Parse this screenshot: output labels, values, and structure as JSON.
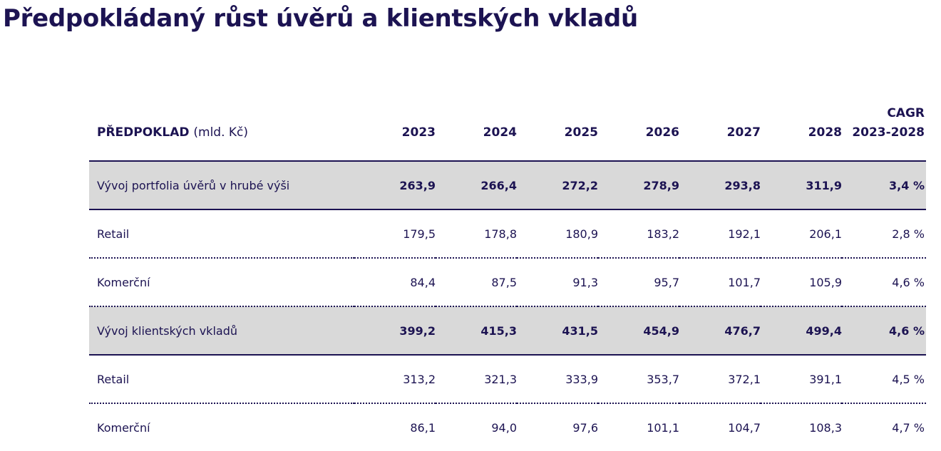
{
  "title": "Předpokládaný růst úvěrů a klientských vkladů",
  "table": {
    "header": {
      "label_main": "PŘEDPOKLAD",
      "label_unit": "(mld. Kč)",
      "years": [
        "2023",
        "2024",
        "2025",
        "2026",
        "2027",
        "2028"
      ],
      "cagr_line1": "CAGR",
      "cagr_line2": "2023-2028"
    },
    "rows": [
      {
        "label": "Vývoj portfolia úvěrů v hrubé výši",
        "values": [
          "263,9",
          "266,4",
          "272,2",
          "278,9",
          "293,8",
          "311,9"
        ],
        "cagr": "3,4 %",
        "summary": true
      },
      {
        "label": "Retail",
        "values": [
          "179,5",
          "178,8",
          "180,9",
          "183,2",
          "192,1",
          "206,1"
        ],
        "cagr": "2,8 %",
        "summary": false
      },
      {
        "label": "Komerční",
        "values": [
          "84,4",
          "87,5",
          "91,3",
          "95,7",
          "101,7",
          "105,9"
        ],
        "cagr": "4,6 %",
        "summary": false
      },
      {
        "label": "Vývoj klientských vkladů",
        "values": [
          "399,2",
          "415,3",
          "431,5",
          "454,9",
          "476,7",
          "499,4"
        ],
        "cagr": "4,6 %",
        "summary": true
      },
      {
        "label": "Retail",
        "values": [
          "313,2",
          "321,3",
          "333,9",
          "353,7",
          "372,1",
          "391,1"
        ],
        "cagr": "4,5 %",
        "summary": false
      },
      {
        "label": "Komerční",
        "values": [
          "86,1",
          "94,0",
          "97,6",
          "101,1",
          "104,7",
          "108,3"
        ],
        "cagr": "4,7 %",
        "summary": false
      }
    ]
  },
  "colors": {
    "text": "#1c1352",
    "summary_row_background": "#d9d9d9",
    "background": "#ffffff"
  }
}
